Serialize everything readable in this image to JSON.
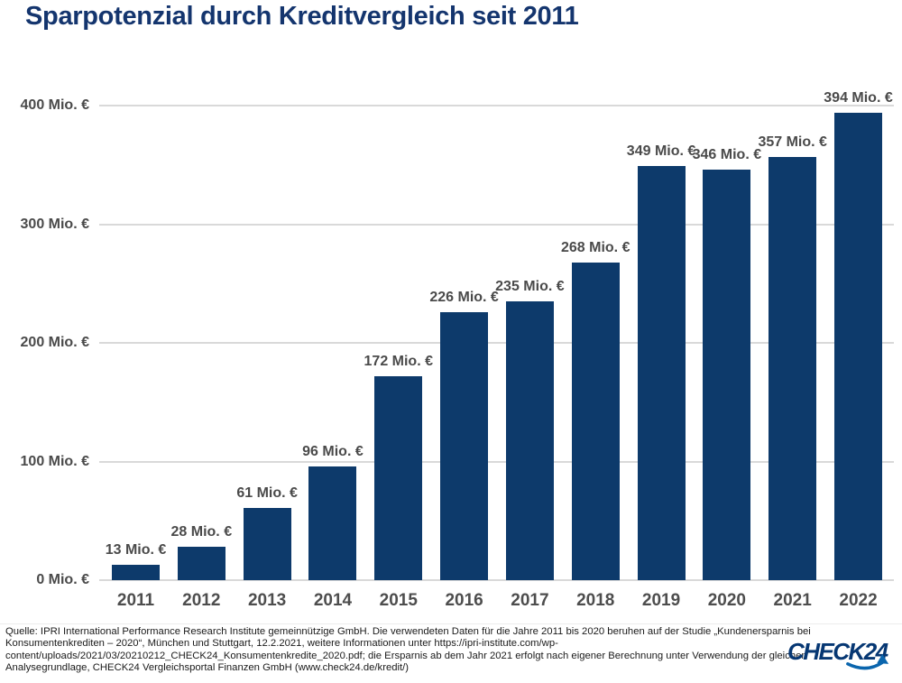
{
  "title": "Sparpotenzial durch Kreditvergleich seit 2011",
  "chart_data": {
    "type": "bar",
    "title": "Sparpotenzial durch Kreditvergleich seit 2011",
    "categories": [
      "2011",
      "2012",
      "2013",
      "2014",
      "2015",
      "2016",
      "2017",
      "2018",
      "2019",
      "2020",
      "2021",
      "2022"
    ],
    "values": [
      13,
      28,
      61,
      96,
      172,
      226,
      235,
      268,
      349,
      346,
      357,
      394
    ],
    "bar_labels": [
      "13 Mio. €",
      "28 Mio. €",
      "61 Mio. €",
      "96 Mio. €",
      "172 Mio. €",
      "226 Mio. €",
      "235 Mio. €",
      "268 Mio. €",
      "349 Mio. €",
      "346 Mio. €",
      "357 Mio. €",
      "394 Mio. €"
    ],
    "y_ticks": [
      {
        "value": 0,
        "label": "0 Mio. €"
      },
      {
        "value": 100,
        "label": "100 Mio. €"
      },
      {
        "value": 200,
        "label": "200 Mio. €"
      },
      {
        "value": 300,
        "label": "300 Mio. €"
      },
      {
        "value": 400,
        "label": "400 Mio. €"
      }
    ],
    "ylim": [
      0,
      400
    ],
    "xlabel": "",
    "ylabel": "",
    "grid": true,
    "legend": "none",
    "bar_color": "#0d3a6b"
  },
  "colors": {
    "title": "#14356e",
    "bar": "#0d3a6b",
    "axis_label": "#4a4a4a",
    "gridline": "#d9d9d9",
    "source_text": "#1a1a1a",
    "logo_navy": "#063773",
    "logo_arrow": "#0a65ad"
  },
  "footer": {
    "source_lines": [
      "Quelle: IPRI International Performance Research Institute gemeinnützige GmbH. Die verwendeten Daten für die Jahre 2011 bis 2020 beruhen auf der Studie „Kundenersparnis bei",
      "Konsumentenkrediten – 2020“, München und Stuttgart, 12.2.2021, weitere Informationen unter https://ipri-institute.com/wp-",
      "content/uploads/2021/03/20210212_CHECK24_Konsumentenkredite_2020.pdf; die Ersparnis ab dem Jahr 2021 erfolgt nach eigener Berechnung unter Verwendung der gleichen",
      "Analysegrundlage, CHECK24 Vergleichsportal Finanzen GmbH (www.check24.de/kredit/)"
    ],
    "logo_text": "CHECK24"
  }
}
